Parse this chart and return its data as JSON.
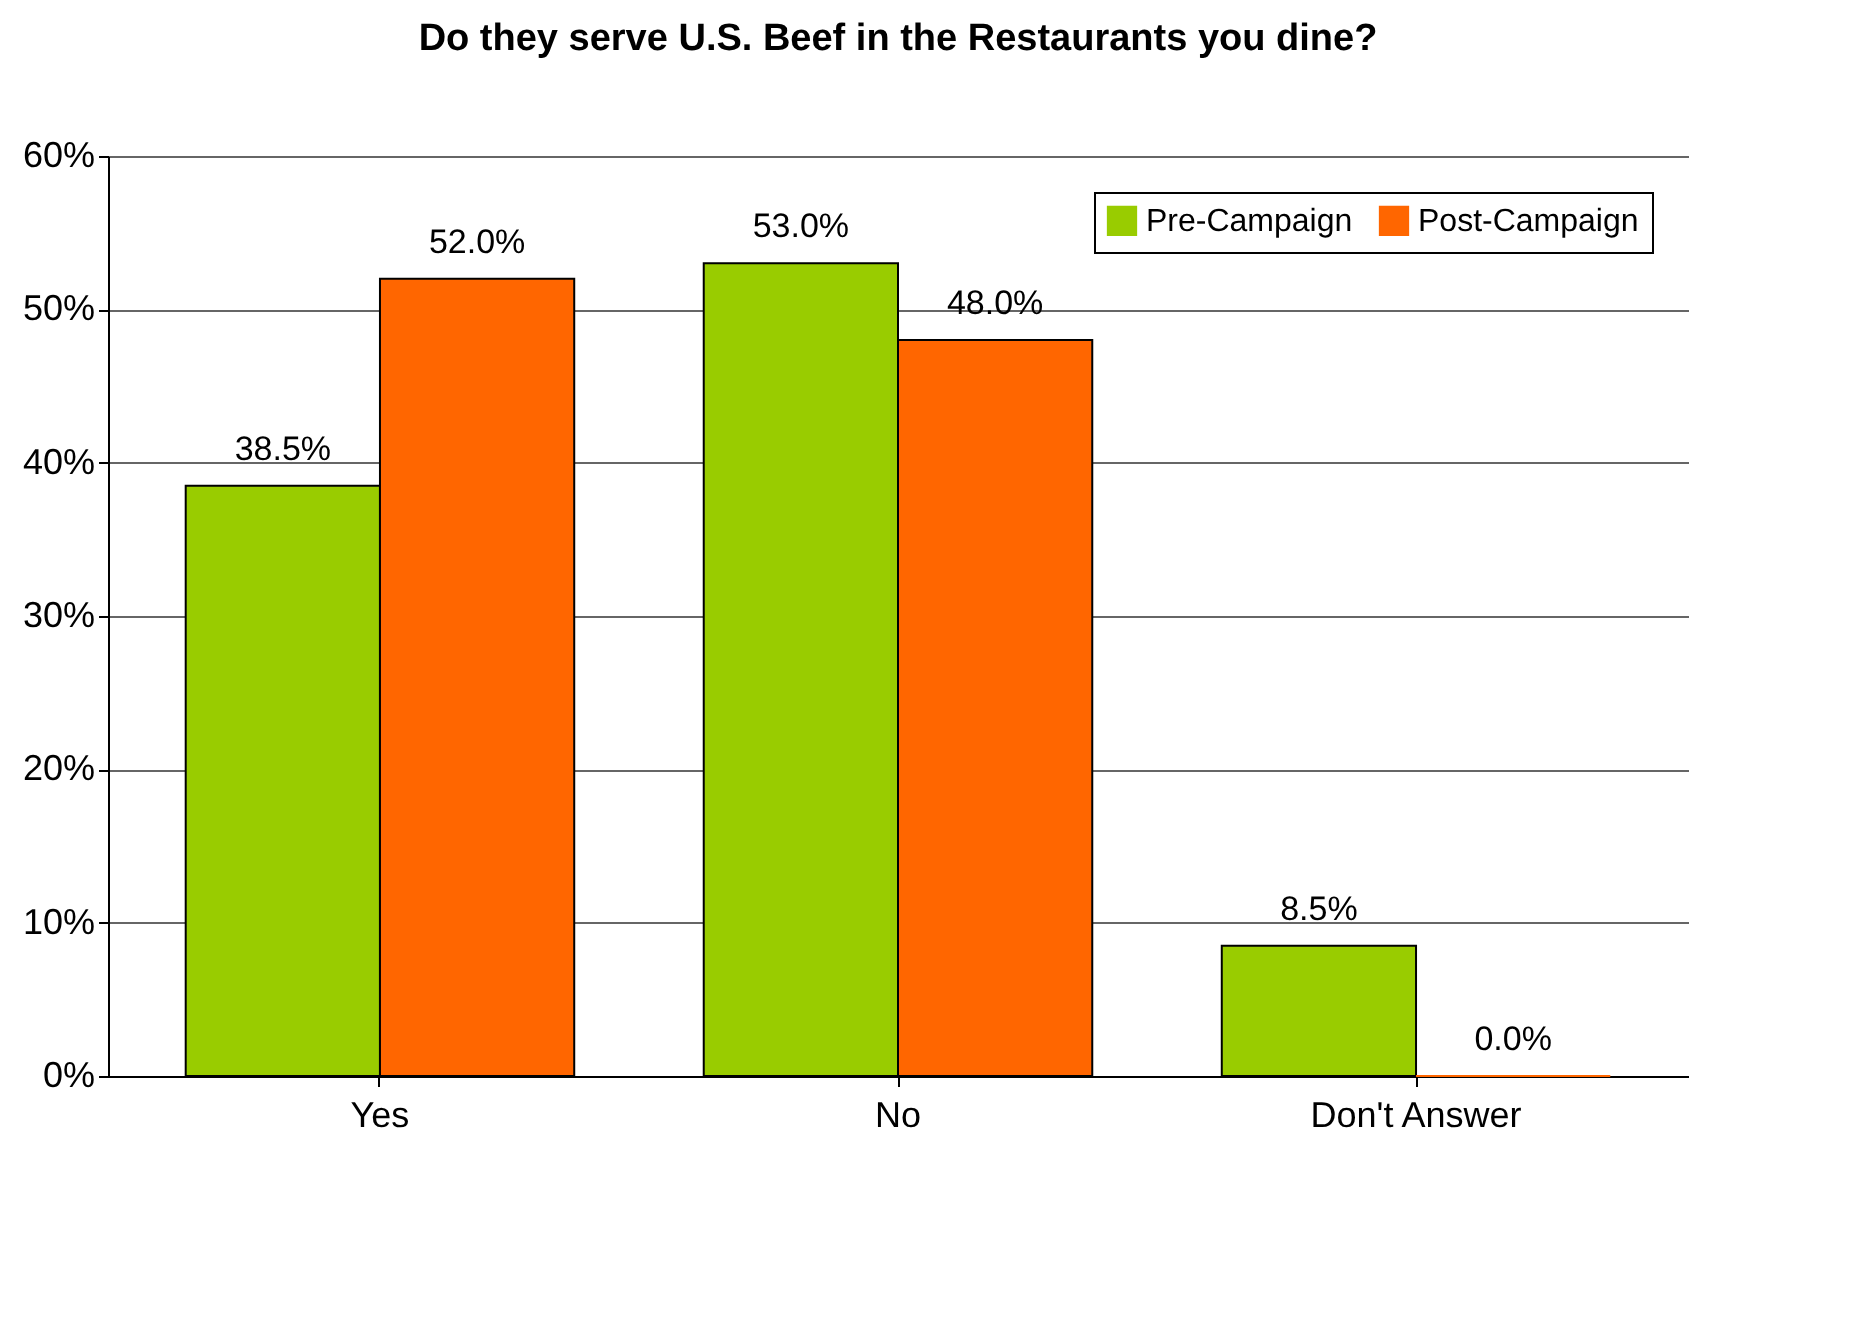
{
  "chart_data": {
    "type": "bar",
    "title": "Do they serve U.S. Beef in the Restaurants you dine?",
    "categories": [
      "Yes",
      "No",
      "Don't Answer"
    ],
    "series": [
      {
        "name": "Pre-Campaign",
        "color": "#99cc00",
        "values": [
          38.5,
          53.0,
          8.5
        ],
        "value_labels": [
          "38.5%",
          "53.0%",
          "8.5%"
        ]
      },
      {
        "name": "Post-Campaign",
        "color": "#ff6600",
        "values": [
          52.0,
          48.0,
          0.0
        ],
        "value_labels": [
          "52.0%",
          "48.0%",
          "0.0%"
        ]
      }
    ],
    "ylim": [
      0,
      60
    ],
    "yticks": [
      {
        "value": 0,
        "label": "0%"
      },
      {
        "value": 10,
        "label": "10%"
      },
      {
        "value": 20,
        "label": "20%"
      },
      {
        "value": 30,
        "label": "30%"
      },
      {
        "value": 40,
        "label": "40%"
      },
      {
        "value": 50,
        "label": "50%"
      },
      {
        "value": 60,
        "label": "60%"
      }
    ],
    "grid": "y",
    "legend": "top right"
  }
}
